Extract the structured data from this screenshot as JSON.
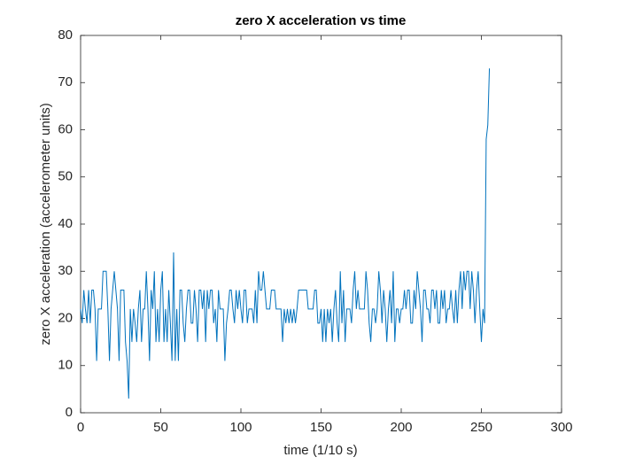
{
  "chart_data": {
    "type": "line",
    "title": "zero X acceleration vs time",
    "x_label": "time (1/10 s)",
    "y_label": "zero X acceleration (accelerometer units)",
    "color": "#0072bd",
    "xlim": [
      0,
      300
    ],
    "xticks": [
      0,
      50,
      100,
      150,
      200,
      250,
      300
    ],
    "ylim": [
      0,
      80
    ],
    "yticks": [
      0,
      10,
      20,
      30,
      40,
      50,
      60,
      70,
      80
    ],
    "x": [
      0,
      1,
      2,
      3,
      4,
      5,
      6,
      7,
      8,
      9,
      10,
      11,
      12,
      13,
      14,
      15,
      16,
      17,
      18,
      19,
      20,
      21,
      22,
      23,
      24,
      25,
      26,
      27,
      28,
      29,
      30,
      31,
      32,
      33,
      34,
      35,
      36,
      37,
      38,
      39,
      40,
      41,
      42,
      43,
      44,
      45,
      46,
      47,
      48,
      49,
      50,
      51,
      52,
      53,
      54,
      55,
      56,
      57,
      58,
      59,
      60,
      61,
      62,
      63,
      64,
      65,
      66,
      67,
      68,
      69,
      70,
      71,
      72,
      73,
      74,
      75,
      76,
      77,
      78,
      79,
      80,
      81,
      82,
      83,
      84,
      85,
      86,
      87,
      88,
      89,
      90,
      91,
      92,
      93,
      94,
      95,
      96,
      97,
      98,
      99,
      100,
      101,
      102,
      103,
      104,
      105,
      106,
      107,
      108,
      109,
      110,
      111,
      112,
      113,
      114,
      115,
      116,
      117,
      118,
      119,
      120,
      121,
      122,
      123,
      124,
      125,
      126,
      127,
      128,
      129,
      130,
      131,
      132,
      133,
      134,
      135,
      136,
      137,
      138,
      139,
      140,
      141,
      142,
      143,
      144,
      145,
      146,
      147,
      148,
      149,
      150,
      151,
      152,
      153,
      154,
      155,
      156,
      157,
      158,
      159,
      160,
      161,
      162,
      163,
      164,
      165,
      166,
      167,
      168,
      169,
      170,
      171,
      172,
      173,
      174,
      175,
      176,
      177,
      178,
      179,
      180,
      181,
      182,
      183,
      184,
      185,
      186,
      187,
      188,
      189,
      190,
      191,
      192,
      193,
      194,
      195,
      196,
      197,
      198,
      199,
      200,
      201,
      202,
      203,
      204,
      205,
      206,
      207,
      208,
      209,
      210,
      211,
      212,
      213,
      214,
      215,
      216,
      217,
      218,
      219,
      220,
      221,
      222,
      223,
      224,
      225,
      226,
      227,
      228,
      229,
      230,
      231,
      232,
      233,
      234,
      235,
      236,
      237,
      238,
      239,
      240,
      241,
      242,
      243,
      244,
      245,
      246,
      247,
      248,
      249,
      250,
      251,
      252,
      253,
      254,
      255
    ],
    "values": [
      22,
      19,
      26,
      22,
      19,
      26,
      19,
      26,
      26,
      22,
      11,
      22,
      22,
      22,
      30,
      30,
      30,
      22,
      11,
      22,
      26,
      30,
      26,
      22,
      11,
      26,
      26,
      26,
      15,
      11,
      3,
      22,
      15,
      22,
      19,
      15,
      22,
      26,
      15,
      22,
      22,
      30,
      22,
      11,
      26,
      22,
      30,
      15,
      22,
      15,
      26,
      30,
      15,
      22,
      15,
      26,
      19,
      11,
      34,
      11,
      22,
      11,
      26,
      26,
      19,
      15,
      22,
      26,
      26,
      19,
      19,
      26,
      22,
      15,
      26,
      26,
      22,
      26,
      15,
      26,
      22,
      26,
      26,
      19,
      22,
      15,
      26,
      22,
      22,
      22,
      11,
      19,
      22,
      26,
      26,
      22,
      19,
      26,
      22,
      26,
      22,
      19,
      26,
      26,
      19,
      22,
      22,
      22,
      19,
      26,
      19,
      30,
      26,
      26,
      30,
      26,
      22,
      22,
      22,
      26,
      26,
      26,
      22,
      22,
      22,
      22,
      15,
      22,
      19,
      22,
      19,
      22,
      19,
      22,
      19,
      22,
      26,
      26,
      26,
      26,
      26,
      26,
      22,
      22,
      22,
      22,
      26,
      26,
      19,
      19,
      22,
      15,
      22,
      15,
      22,
      19,
      22,
      15,
      22,
      26,
      19,
      15,
      30,
      19,
      26,
      15,
      22,
      22,
      22,
      19,
      26,
      30,
      22,
      26,
      22,
      22,
      22,
      22,
      30,
      26,
      19,
      15,
      22,
      22,
      19,
      22,
      30,
      26,
      19,
      26,
      22,
      15,
      22,
      26,
      19,
      30,
      15,
      22,
      22,
      19,
      22,
      22,
      26,
      22,
      26,
      26,
      19,
      19,
      26,
      22,
      30,
      26,
      22,
      15,
      26,
      26,
      22,
      22,
      19,
      26,
      26,
      22,
      26,
      19,
      19,
      26,
      22,
      26,
      19,
      22,
      22,
      26,
      22,
      19,
      26,
      19,
      26,
      30,
      22,
      30,
      26,
      30,
      30,
      22,
      30,
      26,
      19,
      26,
      30,
      22,
      15,
      22,
      19,
      58,
      61,
      73
    ]
  }
}
